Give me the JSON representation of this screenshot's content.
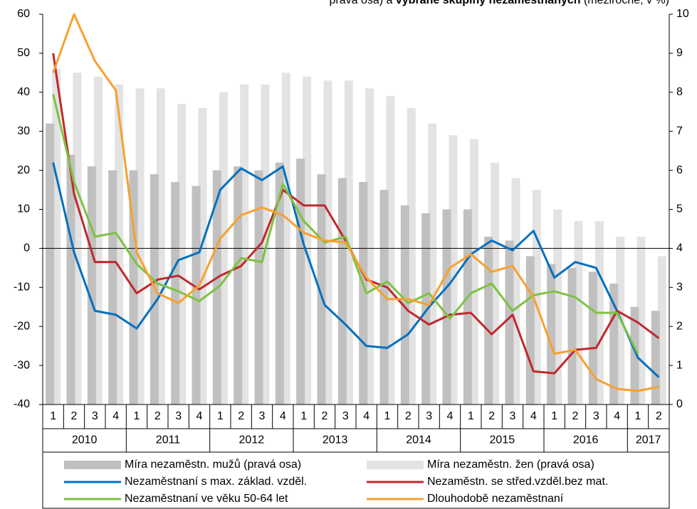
{
  "chart_data": {
    "type": "combo",
    "title": [
      "pravá osa) a ",
      "vybrané skupiny nezaměstnaných",
      " (meziročně, v %)"
    ],
    "categories": [
      "1",
      "2",
      "3",
      "4",
      "1",
      "2",
      "3",
      "4",
      "1",
      "2",
      "3",
      "4",
      "1",
      "2",
      "3",
      "4",
      "1",
      "2",
      "3",
      "4",
      "1",
      "2",
      "3",
      "4",
      "1",
      "2",
      "3",
      "4",
      "1",
      "2"
    ],
    "years": [
      "2010",
      "2011",
      "2012",
      "2013",
      "2014",
      "2015",
      "2016",
      "2017"
    ],
    "ylim": [
      -40,
      60
    ],
    "yticks": [
      -40,
      -30,
      -20,
      -10,
      0,
      10,
      20,
      30,
      40,
      50,
      60
    ],
    "y2lim": [
      0,
      10
    ],
    "y2ticks": [
      0,
      1,
      2,
      3,
      4,
      5,
      6,
      7,
      8,
      9,
      10
    ],
    "series": [
      {
        "name": "Míra nezaměstn. mužů (pravá osa)",
        "type": "bar",
        "axis": "y2",
        "color": "#c0c0c0",
        "values": [
          7.2,
          6.4,
          6.1,
          6.0,
          6.0,
          5.9,
          5.7,
          5.6,
          6.0,
          6.1,
          6.0,
          6.2,
          6.3,
          5.9,
          5.8,
          5.7,
          5.5,
          5.1,
          4.9,
          5.0,
          5.0,
          4.3,
          4.2,
          3.8,
          3.6,
          3.5,
          3.4,
          3.1,
          2.5,
          2.4
        ]
      },
      {
        "name": "Míra nezaměstn. žen (pravá osa)",
        "type": "bar",
        "axis": "y2",
        "color": "#e3e3e3",
        "values": [
          8.6,
          8.5,
          8.4,
          8.2,
          8.1,
          8.1,
          7.7,
          7.6,
          8.0,
          8.2,
          8.2,
          8.5,
          8.4,
          8.3,
          8.3,
          8.1,
          7.9,
          7.6,
          7.2,
          6.9,
          6.8,
          6.2,
          5.8,
          5.5,
          5.0,
          4.7,
          4.7,
          4.3,
          4.3,
          3.8
        ]
      },
      {
        "name": "Nezaměstnaní s max. základ. vzděl.",
        "type": "line",
        "color": "#0070c0",
        "values": [
          22,
          -1,
          -16,
          -17,
          -20.5,
          -13,
          -3,
          -1,
          15,
          20.5,
          17.5,
          21,
          1,
          -14.5,
          -19.5,
          -25,
          -25.5,
          -22,
          -15,
          -9,
          -1.5,
          2,
          -0.5,
          4.5,
          -7.5,
          -3.5,
          -5,
          -16,
          -28,
          -33
        ]
      },
      {
        "name": "Nezaměstn. se střed.vzděl.bez mat.",
        "type": "line",
        "color": "#c0282d",
        "values": [
          50,
          14,
          -3.5,
          -3.5,
          -11.5,
          -8,
          -7,
          -10.5,
          -7,
          -4.5,
          1.5,
          15,
          11,
          11,
          2,
          -8,
          -10,
          -16,
          -19.5,
          -17,
          -16.5,
          -22,
          -17,
          -31.5,
          -32,
          -26,
          -25.5,
          -16,
          -19,
          -23
        ]
      },
      {
        "name": "Nezaměstnaní ve věku 50-64 let",
        "type": "line",
        "color": "#7dc242",
        "values": [
          39.5,
          17,
          3,
          4,
          -4,
          -9,
          -11,
          -13.5,
          -9.5,
          -2.5,
          -3.5,
          16.5,
          7,
          1.5,
          3,
          -11.5,
          -8.5,
          -14,
          -11.5,
          -18,
          -11.5,
          -9,
          -16,
          -12,
          -11,
          -12.5,
          -16.5,
          -16.5,
          -27,
          null
        ]
      },
      {
        "name": "Dlouhodobě nezaměstnaní",
        "type": "line",
        "color": "#f7a030",
        "values": [
          45,
          60,
          48,
          40.5,
          -1,
          -11.5,
          -14,
          -9.5,
          2.5,
          8.5,
          10.5,
          8.5,
          4,
          2,
          1.5,
          -7.5,
          -13,
          -13,
          -14.5,
          -5,
          -1.5,
          -6,
          -4.5,
          -12.5,
          -27,
          -26,
          -33.5,
          -36,
          -36.5,
          -35.5
        ]
      }
    ]
  }
}
